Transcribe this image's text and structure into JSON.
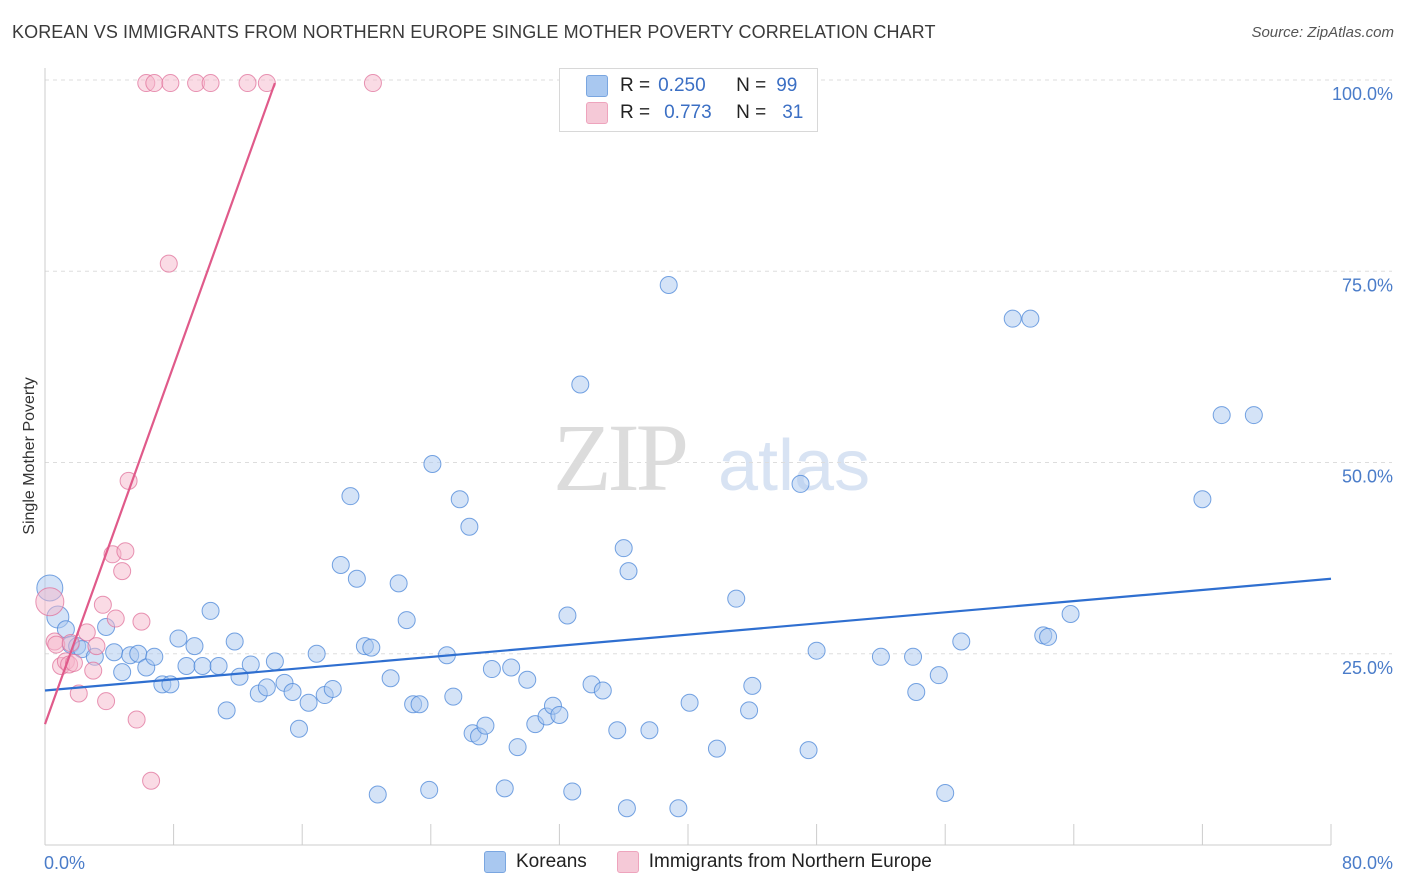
{
  "title": "KOREAN VS IMMIGRANTS FROM NORTHERN EUROPE SINGLE MOTHER POVERTY CORRELATION CHART",
  "source": "Source: ZipAtlas.com",
  "watermark": {
    "a": "ZIP",
    "b": "atlas"
  },
  "legend": {
    "r_label": "R =",
    "n_label": "N =",
    "koreans": {
      "r": "0.250",
      "n": "99",
      "color": "#a9c8f0"
    },
    "immigrants": {
      "r": "0.773",
      "n": "31",
      "color": "#f5b8cb"
    }
  },
  "bottom_legend": {
    "koreans": "Koreans",
    "immigrants": "Immigrants from Northern Europe"
  },
  "chart_data": {
    "type": "scatter",
    "title": "KOREAN VS IMMIGRANTS FROM NORTHERN EUROPE SINGLE MOTHER POVERTY CORRELATION CHART",
    "xlabel": "",
    "ylabel": "Single Mother Poverty",
    "xlim": [
      0,
      80
    ],
    "ylim": [
      0,
      100
    ],
    "x_tick_labels": [
      "0.0%",
      "80.0%"
    ],
    "y_tick_labels": [
      "25.0%",
      "50.0%",
      "75.0%",
      "100.0%"
    ],
    "y_ticks": [
      25,
      50,
      75,
      100
    ],
    "grid": true,
    "series": [
      {
        "name": "Koreans",
        "color": "#4a86d8",
        "fill": "#a9c8f0",
        "trend": {
          "x": [
            0,
            80
          ],
          "y": [
            20.2,
            34.8
          ],
          "color": "#2f6fd0"
        },
        "points": [
          [
            0.3,
            33.6
          ],
          [
            0.8,
            29.8
          ],
          [
            1.3,
            28.2
          ],
          [
            1.6,
            26.2
          ],
          [
            2.0,
            26.0
          ],
          [
            2.3,
            25.6
          ],
          [
            3.1,
            24.6
          ],
          [
            3.8,
            28.5
          ],
          [
            4.3,
            25.2
          ],
          [
            4.8,
            22.6
          ],
          [
            5.3,
            24.8
          ],
          [
            5.8,
            25.0
          ],
          [
            6.3,
            23.2
          ],
          [
            6.8,
            24.6
          ],
          [
            7.3,
            21.0
          ],
          [
            7.8,
            21.0
          ],
          [
            8.3,
            27.0
          ],
          [
            8.8,
            23.4
          ],
          [
            9.3,
            26.0
          ],
          [
            9.8,
            23.4
          ],
          [
            10.3,
            30.6
          ],
          [
            10.8,
            23.4
          ],
          [
            11.3,
            17.6
          ],
          [
            11.8,
            26.6
          ],
          [
            12.1,
            22.0
          ],
          [
            12.8,
            23.6
          ],
          [
            13.3,
            19.8
          ],
          [
            13.8,
            20.6
          ],
          [
            14.3,
            24.0
          ],
          [
            14.9,
            21.2
          ],
          [
            15.4,
            20.0
          ],
          [
            15.8,
            15.2
          ],
          [
            16.4,
            18.6
          ],
          [
            16.9,
            25.0
          ],
          [
            17.4,
            19.6
          ],
          [
            17.9,
            20.4
          ],
          [
            18.4,
            36.6
          ],
          [
            19.0,
            45.6
          ],
          [
            19.4,
            34.8
          ],
          [
            19.9,
            26.0
          ],
          [
            20.3,
            25.8
          ],
          [
            20.7,
            6.6
          ],
          [
            21.5,
            21.8
          ],
          [
            22.0,
            34.2
          ],
          [
            22.5,
            29.4
          ],
          [
            22.9,
            18.4
          ],
          [
            23.3,
            18.4
          ],
          [
            23.9,
            7.2
          ],
          [
            24.1,
            49.8
          ],
          [
            25.0,
            24.8
          ],
          [
            25.4,
            19.4
          ],
          [
            25.8,
            45.2
          ],
          [
            26.4,
            41.6
          ],
          [
            26.6,
            14.6
          ],
          [
            27.0,
            14.2
          ],
          [
            27.4,
            15.6
          ],
          [
            27.8,
            23.0
          ],
          [
            28.6,
            7.4
          ],
          [
            29.0,
            23.2
          ],
          [
            29.4,
            12.8
          ],
          [
            30.0,
            21.6
          ],
          [
            30.5,
            15.8
          ],
          [
            31.2,
            16.8
          ],
          [
            31.6,
            18.2
          ],
          [
            32.0,
            17.0
          ],
          [
            32.5,
            30.0
          ],
          [
            32.8,
            7.0
          ],
          [
            33.3,
            60.2
          ],
          [
            34.0,
            21.0
          ],
          [
            34.7,
            20.2
          ],
          [
            35.6,
            15.0
          ],
          [
            36.0,
            38.8
          ],
          [
            36.2,
            4.8
          ],
          [
            36.3,
            35.8
          ],
          [
            37.6,
            15.0
          ],
          [
            38.8,
            73.2
          ],
          [
            39.4,
            4.8
          ],
          [
            40.1,
            18.6
          ],
          [
            41.8,
            12.6
          ],
          [
            43.0,
            32.2
          ],
          [
            43.8,
            17.6
          ],
          [
            44.0,
            20.8
          ],
          [
            47.0,
            47.2
          ],
          [
            47.5,
            12.4
          ],
          [
            48.0,
            25.4
          ],
          [
            52.0,
            24.6
          ],
          [
            54.0,
            24.6
          ],
          [
            54.2,
            20.0
          ],
          [
            55.6,
            22.2
          ],
          [
            57.0,
            26.6
          ],
          [
            60.2,
            68.8
          ],
          [
            61.3,
            68.8
          ],
          [
            62.1,
            27.4
          ],
          [
            62.4,
            27.2
          ],
          [
            63.8,
            30.2
          ],
          [
            72.0,
            45.2
          ],
          [
            73.2,
            56.2
          ],
          [
            75.2,
            56.2
          ],
          [
            56.0,
            6.8
          ]
        ]
      },
      {
        "name": "Immigrants from Northern Europe",
        "color": "#e0729b",
        "fill": "#f5b8cb",
        "trend": {
          "x": [
            0,
            14.3
          ],
          "y": [
            15.8,
            99.6
          ],
          "color": "#e05a8a"
        },
        "points": [
          [
            0.3,
            31.8
          ],
          [
            0.6,
            26.6
          ],
          [
            0.7,
            26.2
          ],
          [
            1.0,
            23.4
          ],
          [
            1.3,
            24.0
          ],
          [
            1.5,
            23.6
          ],
          [
            1.6,
            26.4
          ],
          [
            1.8,
            23.8
          ],
          [
            2.1,
            19.8
          ],
          [
            2.6,
            27.8
          ],
          [
            3.0,
            22.8
          ],
          [
            3.2,
            26.0
          ],
          [
            3.6,
            31.4
          ],
          [
            3.8,
            18.8
          ],
          [
            4.2,
            38.0
          ],
          [
            4.4,
            29.6
          ],
          [
            4.8,
            35.8
          ],
          [
            5.0,
            38.4
          ],
          [
            5.2,
            47.6
          ],
          [
            5.7,
            16.4
          ],
          [
            6.0,
            29.2
          ],
          [
            6.6,
            8.4
          ],
          [
            6.3,
            99.6
          ],
          [
            6.8,
            99.6
          ],
          [
            7.8,
            99.6
          ],
          [
            9.4,
            99.6
          ],
          [
            10.3,
            99.6
          ],
          [
            12.6,
            99.6
          ],
          [
            13.8,
            99.6
          ],
          [
            20.4,
            99.6
          ],
          [
            7.7,
            76.0
          ]
        ]
      }
    ]
  }
}
